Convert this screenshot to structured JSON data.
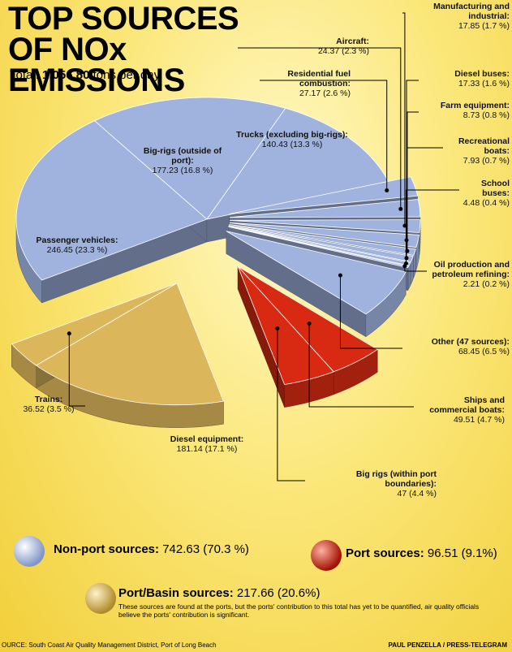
{
  "chart_data": {
    "type": "pie",
    "title": "TOP SOURCES OF NOx EMISSIONS",
    "total_label": "Total:",
    "total": "1,056.80",
    "total_unit": "tons per day",
    "groups": [
      {
        "name": "Non-port sources:",
        "value": 742.63,
        "value_label": "742.63 (70.3 %)",
        "color": "#9fb3de",
        "categories": [
          "Passenger vehicles:",
          "Big-rigs (outside of port):",
          "Trucks (excluding big-rigs):",
          "Residential fuel combustion:",
          "Aircraft:",
          "Manufacturing and industrial:",
          "Diesel buses:",
          "Farm equipment:",
          "Recreational boats:",
          "School buses:",
          "Oil production and petroleum refining:",
          "Other (47 sources):"
        ],
        "values": [
          246.45,
          177.23,
          140.43,
          27.17,
          24.37,
          17.85,
          17.33,
          8.73,
          7.93,
          4.48,
          2.21,
          68.45
        ],
        "value_labels": [
          "246.45 (23.3 %)",
          "177.23 (16.8 %)",
          "140.43 (13.3 %)",
          "27.17 (2.6 %)",
          "24.37 (2.3 %)",
          "17.85 (1.7 %)",
          "17.33 (1.6 %)",
          "8.73 (0.8 %)",
          "7.93 (0.7 %)",
          "4.48 (0.4 %)",
          "2.21 (0.2 %)",
          "68.45 (6.5 %)"
        ]
      },
      {
        "name": "Port sources:",
        "value": 96.51,
        "value_label": "96.51 (9.1%)",
        "color": "#d82a12",
        "categories": [
          "Ships and commercial boats:",
          "Big rigs (within port boundaries):"
        ],
        "values": [
          49.51,
          47
        ],
        "value_labels": [
          "49.51 (4.7 %)",
          "47 (4.4 %)"
        ]
      },
      {
        "name": "Port/Basin sources:",
        "value": 217.66,
        "value_label": "217.66 (20.6%)",
        "color": "#dcb65a",
        "note": "These sources are found at the ports, but the ports' contribution to this total has yet to be quantified, air quality officials believe the ports' contribution is significant.",
        "categories": [
          "Diesel equipment:",
          "Trains:"
        ],
        "values": [
          181.14,
          36.52
        ],
        "value_labels": [
          "181.14 (17.1 %)",
          "36.52 (3.5 %)"
        ]
      }
    ],
    "source": "OURCE: South Coast Air Quality Management District, Port of Long Beach",
    "credit": "PAUL PENZELLA / PRESS-TELEGRAM"
  }
}
